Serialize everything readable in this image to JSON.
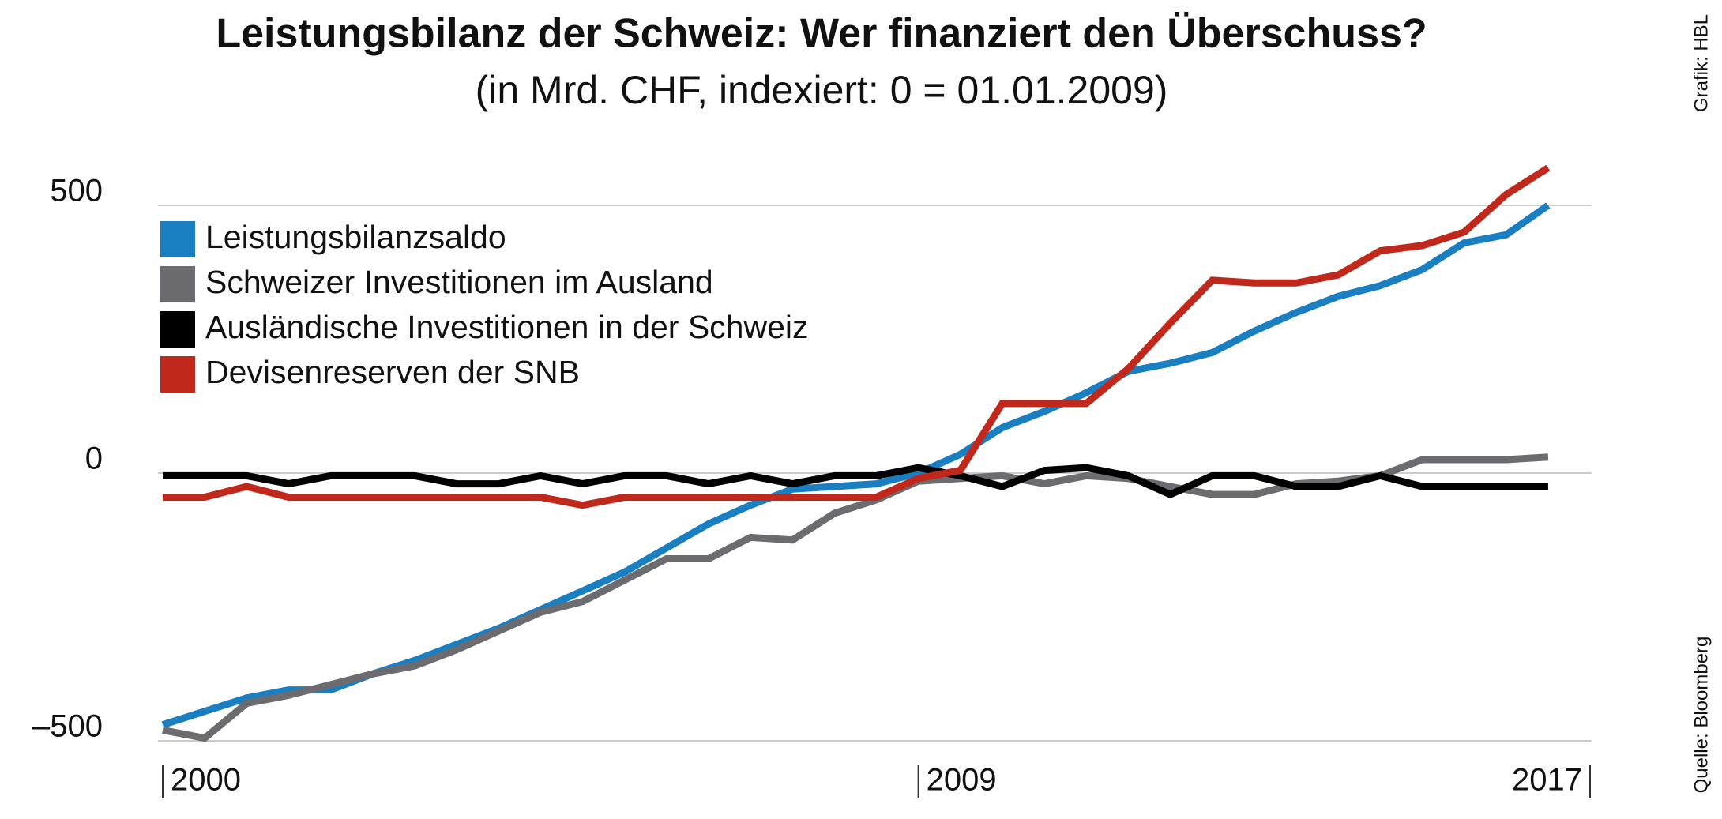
{
  "chart_data": {
    "type": "line",
    "title": "Leistungsbilanz der Schweiz: Wer finanziert den Überschuss?",
    "subtitle": "(in Mrd. CHF, indexiert: 0 = 01.01.2009)",
    "credit": "Grafik: HBL",
    "source": "Quelle: Bloomberg",
    "x": [
      2000,
      2000.5,
      2001,
      2001.5,
      2002,
      2002.5,
      2003,
      2003.5,
      2004,
      2004.5,
      2005,
      2005.5,
      2006,
      2006.5,
      2007,
      2007.5,
      2008,
      2008.5,
      2009,
      2009.5,
      2010,
      2010.5,
      2011,
      2011.5,
      2012,
      2012.5,
      2013,
      2013.5,
      2014,
      2014.5,
      2015,
      2015.5,
      2016,
      2016.5
    ],
    "xlim": [
      2000,
      2017
    ],
    "xticks": [
      2000,
      2009,
      2017
    ],
    "ylim": [
      -500,
      500
    ],
    "yticks": [
      {
        "value": -500,
        "label": "–500"
      },
      0,
      500
    ],
    "grid": true,
    "series": [
      {
        "name": "Leistungsbilanzsaldo",
        "color": "#1a7fc1",
        "values": [
          -470,
          -445,
          -420,
          -405,
          -405,
          -375,
          -350,
          -320,
          -290,
          -255,
          -220,
          -185,
          -140,
          -95,
          -60,
          -30,
          -25,
          -20,
          0,
          35,
          85,
          115,
          150,
          190,
          205,
          225,
          265,
          300,
          330,
          350,
          380,
          430,
          445,
          500
        ]
      },
      {
        "name": "Schweizer Investitionen im Ausland",
        "color": "#6b6b70",
        "values": [
          -480,
          -495,
          -430,
          -415,
          -395,
          -375,
          -360,
          -330,
          -295,
          -260,
          -240,
          -200,
          -160,
          -160,
          -120,
          -125,
          -75,
          -50,
          -15,
          -10,
          -5,
          -20,
          -5,
          -10,
          -25,
          -40,
          -40,
          -20,
          -15,
          -5,
          25,
          25,
          25,
          30
        ]
      },
      {
        "name": "Ausländische Investitionen in der Schweiz",
        "color": "#000000",
        "values": [
          -5,
          -5,
          -5,
          -20,
          -5,
          -5,
          -5,
          -20,
          -20,
          -5,
          -20,
          -5,
          -5,
          -20,
          -5,
          -20,
          -5,
          -5,
          10,
          -5,
          -25,
          5,
          10,
          -5,
          -40,
          -5,
          -5,
          -25,
          -25,
          -5,
          -25,
          -25,
          -25,
          -25
        ]
      },
      {
        "name": "Devisenreserven der SNB",
        "color": "#c0281c",
        "values": [
          -45,
          -45,
          -25,
          -45,
          -45,
          -45,
          -45,
          -45,
          -45,
          -45,
          -60,
          -45,
          -45,
          -45,
          -45,
          -45,
          -45,
          -45,
          -10,
          5,
          130,
          130,
          130,
          195,
          280,
          360,
          355,
          355,
          370,
          415,
          425,
          450,
          520,
          570
        ]
      }
    ]
  }
}
